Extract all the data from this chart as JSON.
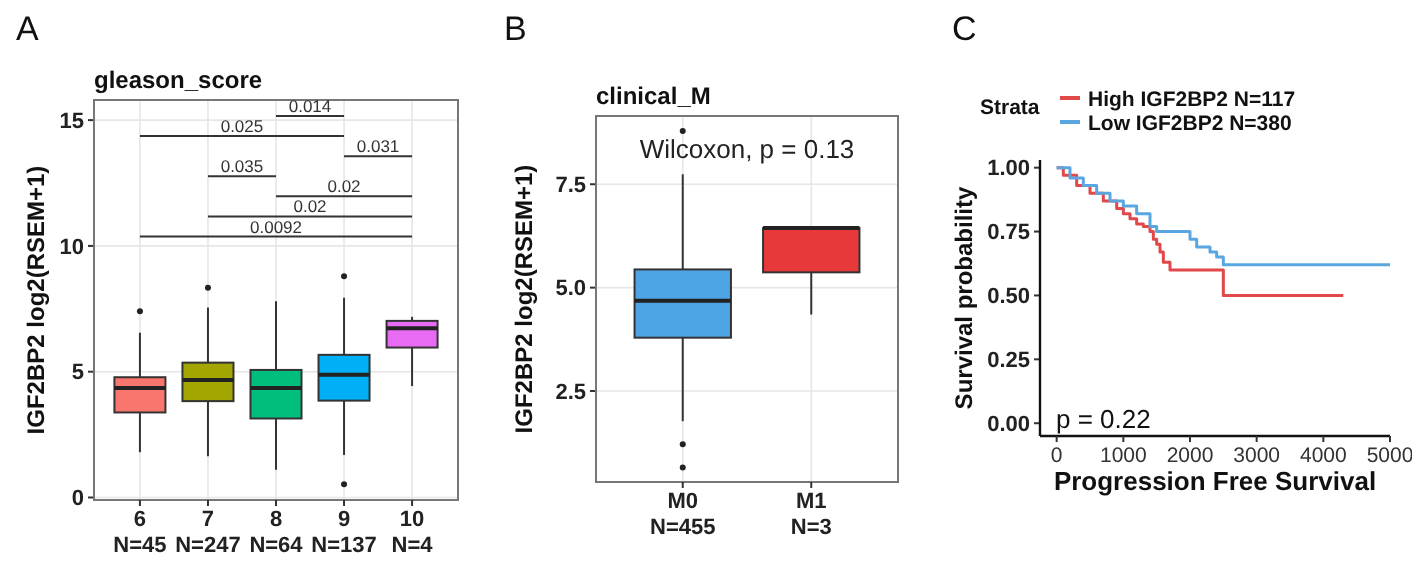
{
  "chart_data": [
    {
      "type": "box",
      "title": "gleason_score",
      "ylabel": "IGF2BP2 log2(RSEM+1)",
      "categories": [
        "6\nN=45",
        "7\nN=247",
        "8\nN=64",
        "9\nN=137",
        "10\nN=4"
      ],
      "colors": [
        "#f8766d",
        "#a3a500",
        "#00bf7d",
        "#00b0f6",
        "#e76bf3"
      ],
      "boxes": [
        {
          "low": 1.8,
          "q1": 3.38,
          "median": 4.35,
          "q3": 4.78,
          "high": 6.55,
          "outliers": [
            7.4
          ]
        },
        {
          "low": 1.64,
          "q1": 3.83,
          "median": 4.67,
          "q3": 5.36,
          "high": 7.55,
          "outliers": [
            8.34
          ]
        },
        {
          "low": 1.1,
          "q1": 3.14,
          "median": 4.35,
          "q3": 5.07,
          "high": 7.8
        },
        {
          "low": 1.69,
          "q1": 3.85,
          "median": 4.88,
          "q3": 5.67,
          "high": 7.94,
          "outliers": [
            8.79,
            0.53
          ]
        },
        {
          "low": 4.43,
          "q1": 5.96,
          "median": 6.73,
          "q3": 7.02,
          "high": 7.18
        }
      ],
      "ylim": [
        -0.1,
        15.8
      ],
      "yticks": [
        0,
        5,
        10,
        15
      ],
      "grid": true,
      "annotations": [
        "A",
        "0.014",
        "0.025",
        "0.031",
        "0.035",
        "0.02",
        "0.02",
        "0.0092"
      ]
    },
    {
      "type": "box",
      "title": "clinical_M",
      "ylabel": "IGF2BP2 log2(RSEM+1)",
      "categories": [
        "M0\nN=455",
        "M1\nN=3"
      ],
      "colors": [
        "#4ea5e6",
        "#e8393a"
      ],
      "boxes": [
        {
          "low": 1.77,
          "q1": 3.79,
          "median": 4.68,
          "q3": 5.44,
          "high": 7.74,
          "outliers": [
            8.79,
            1.21,
            0.65
          ]
        },
        {
          "low": 4.35,
          "q1": 5.37,
          "median": 6.44,
          "q3": 6.44,
          "high": 6.44
        }
      ],
      "ylim": [
        0.3,
        9.15
      ],
      "yticks": [
        {
          "value": 2.5,
          "label": "2.5"
        },
        {
          "value": 5,
          "label": "5.0"
        },
        {
          "value": 7.5,
          "label": "7.5"
        }
      ],
      "grid": true,
      "annotations": [
        "B",
        "Wilcoxon, p = 0.13"
      ]
    },
    {
      "type": "step",
      "ylabel": "Survival probability",
      "xlabel": "Progression Free Survival",
      "legend_title": "Strata",
      "legend": "top",
      "grid": false,
      "xlim": [
        -250,
        5000
      ],
      "xticks": [
        0,
        1000,
        2000,
        3000,
        4000,
        5000
      ],
      "ylim": [
        -0.05,
        1.03
      ],
      "yticks": [
        {
          "value": 0,
          "label": "0.00"
        },
        {
          "value": 0.25,
          "label": "0.25"
        },
        {
          "value": 0.5,
          "label": "0.50"
        },
        {
          "value": 0.75,
          "label": "0.75"
        },
        {
          "value": 1,
          "label": "1.00"
        }
      ],
      "series": [
        {
          "name": "High IGF2BP2 N=117",
          "color": "#e0484a",
          "x": [
            0,
            100,
            300,
            500,
            700,
            900,
            1000,
            1100,
            1200,
            1300,
            1400,
            1450,
            1500,
            1550,
            1600,
            1700,
            2500,
            4300
          ],
          "values": [
            1.0,
            0.97,
            0.93,
            0.9,
            0.87,
            0.84,
            0.82,
            0.8,
            0.78,
            0.77,
            0.75,
            0.72,
            0.7,
            0.67,
            0.63,
            0.6,
            0.5,
            0.5
          ]
        },
        {
          "name": "Low IGF2BP2 N=380",
          "color": "#5aa6e0",
          "x": [
            0,
            200,
            400,
            600,
            800,
            1000,
            1200,
            1400,
            1500,
            2000,
            2100,
            2300,
            2400,
            2500,
            5000
          ],
          "values": [
            1.0,
            0.96,
            0.93,
            0.9,
            0.87,
            0.85,
            0.82,
            0.77,
            0.75,
            0.72,
            0.69,
            0.67,
            0.65,
            0.62,
            0.62
          ]
        }
      ],
      "annotations": [
        "C",
        "p = 0.22"
      ]
    }
  ]
}
